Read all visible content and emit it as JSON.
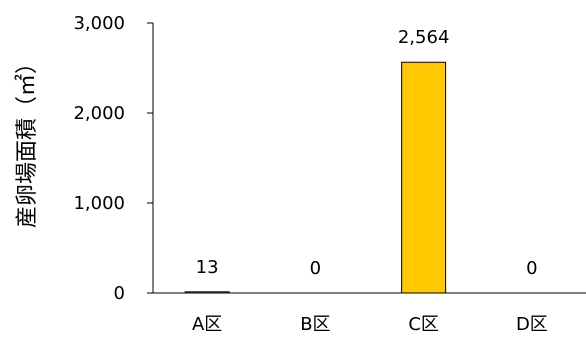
{
  "chart_data": {
    "type": "bar",
    "categories": [
      "A区",
      "B区",
      "C区",
      "D区"
    ],
    "values": [
      13,
      0,
      2564,
      0
    ],
    "data_labels": [
      "13",
      "0",
      "2,564",
      "0"
    ],
    "title": "",
    "xlabel": "",
    "ylabel": "産卵場面積（㎡）",
    "ylim": [
      0,
      3000
    ],
    "yticks": [
      0,
      1000,
      2000,
      3000
    ],
    "ytick_labels": [
      "0",
      "1,000",
      "2,000",
      "3,000"
    ],
    "grid": false,
    "legend": "none",
    "colors": {
      "bar_highlight": "#FFC800",
      "bar_default": "#FFC800",
      "bar_stroke": "#000000",
      "axis": "#000000"
    }
  }
}
